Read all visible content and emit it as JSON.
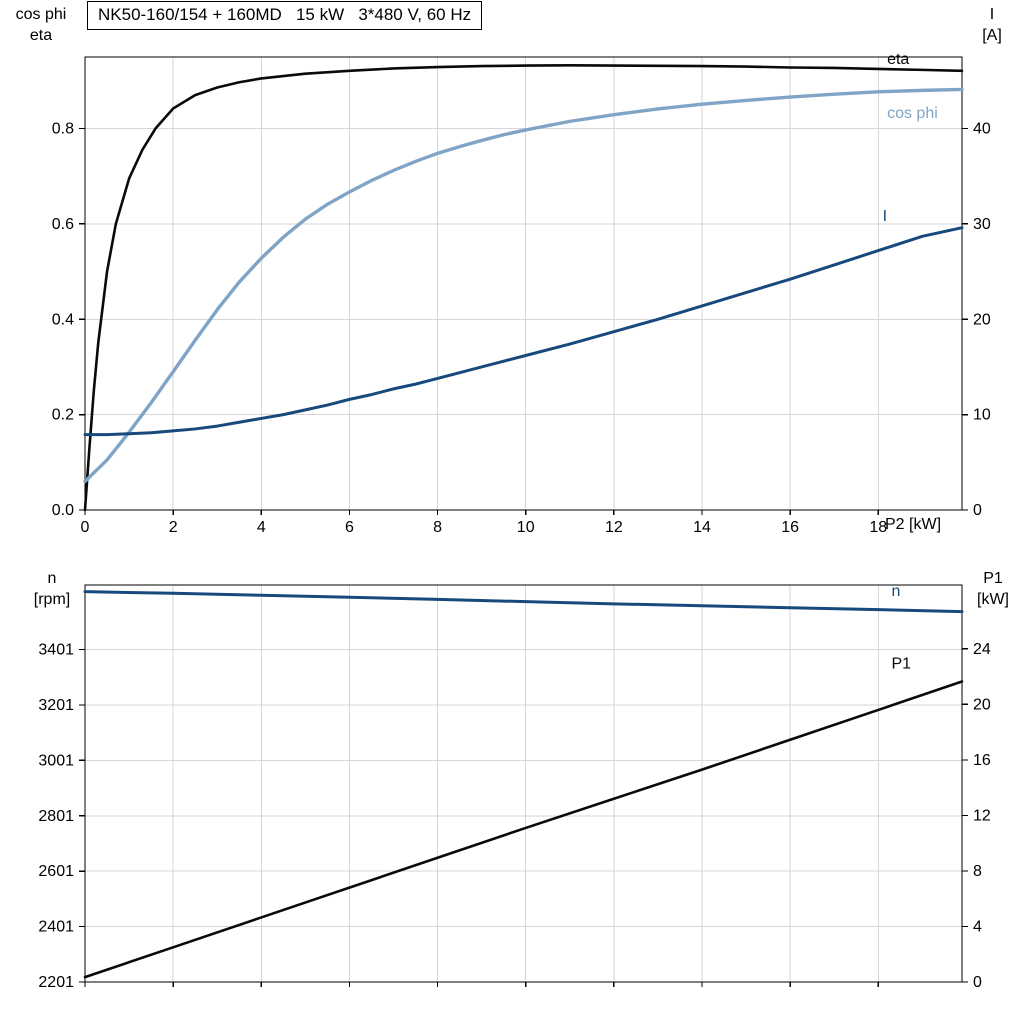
{
  "title_box": "NK50-160/154 + 160MD   15 kW   3*480 V, 60 Hz",
  "labels": {
    "top_left_1": "cos phi",
    "top_left_2": "eta",
    "top_right_1": "I",
    "top_right_2": "[A]",
    "x_axis_top": "P2 [kW]",
    "bottom_left_1": "n",
    "bottom_left_2": "[rpm]",
    "bottom_right_1": "P1",
    "bottom_right_2": "[kW]"
  },
  "colors": {
    "axis": "#000000",
    "grid": "#d6d6d6",
    "black_curve": "#0a0a0a",
    "light_blue": "#7fa4c6",
    "dark_blue": "#17497d",
    "background": "#ffffff"
  },
  "chart_data": [
    {
      "type": "line",
      "title": "NK50-160/154 + 160MD   15 kW   3*480 V, 60 Hz",
      "xlabel": "P2 [kW]",
      "ylabel_left": "cos phi / eta",
      "ylabel_right": "I [A]",
      "grid": true,
      "xlim": [
        0,
        19.9
      ],
      "xticks": [
        0,
        2,
        4,
        6,
        8,
        10,
        12,
        14,
        16,
        18
      ],
      "xtick_labels": [
        "0",
        "2",
        "4",
        "6",
        "8",
        "10",
        "12",
        "14",
        "16",
        "18"
      ],
      "ylim_left": [
        0,
        0.95
      ],
      "yticks_left": [
        0.0,
        0.2,
        0.4,
        0.6,
        0.8
      ],
      "ytick_left_labels": [
        "0.0",
        "0.2",
        "0.4",
        "0.6",
        "0.8"
      ],
      "ylim_right": [
        0,
        47.5
      ],
      "yticks_right": [
        0,
        10,
        20,
        30,
        40
      ],
      "ytick_right_labels": [
        "0",
        "10",
        "20",
        "30",
        "40"
      ],
      "series": [
        {
          "name": "eta",
          "axis": "left",
          "color": "#0a0a0a",
          "width": 2.6,
          "label_x": 18.2,
          "label_y": 0.935,
          "x": [
            0,
            0.1,
            0.2,
            0.3,
            0.5,
            0.7,
            1,
            1.3,
            1.6,
            2,
            2.5,
            3,
            3.5,
            4,
            5,
            6,
            7,
            8,
            9,
            10,
            11,
            12,
            13,
            14,
            15,
            16,
            17,
            18,
            19,
            19.9
          ],
          "y": [
            0,
            0.13,
            0.25,
            0.35,
            0.5,
            0.6,
            0.695,
            0.755,
            0.8,
            0.842,
            0.87,
            0.886,
            0.897,
            0.905,
            0.915,
            0.921,
            0.926,
            0.929,
            0.931,
            0.932,
            0.9325,
            0.932,
            0.9315,
            0.931,
            0.93,
            0.928,
            0.927,
            0.925,
            0.923,
            0.921
          ]
        },
        {
          "name": "cos phi",
          "axis": "left",
          "color": "#7fa4c6",
          "width": 3.4,
          "label_x": 18.2,
          "label_y": 0.822,
          "x": [
            0,
            0.5,
            1,
            1.5,
            2,
            2.5,
            3,
            3.5,
            4,
            4.5,
            5,
            5.5,
            6,
            6.5,
            7,
            7.5,
            8,
            8.5,
            9,
            9.5,
            10,
            11,
            12,
            13,
            14,
            15,
            16,
            17,
            18,
            19,
            19.9
          ],
          "y": [
            0.06,
            0.105,
            0.163,
            0.225,
            0.29,
            0.356,
            0.42,
            0.478,
            0.528,
            0.572,
            0.61,
            0.641,
            0.667,
            0.691,
            0.712,
            0.731,
            0.748,
            0.762,
            0.775,
            0.787,
            0.797,
            0.815,
            0.829,
            0.841,
            0.851,
            0.859,
            0.866,
            0.872,
            0.877,
            0.88,
            0.882
          ]
        },
        {
          "name": "I",
          "axis": "right",
          "color": "#17497d",
          "width": 3.0,
          "label_x": 18.1,
          "label_y": 30.3,
          "x": [
            0,
            0.5,
            1,
            1.5,
            2,
            2.5,
            3,
            3.5,
            4,
            4.5,
            5,
            5.5,
            6,
            6.5,
            7,
            7.5,
            8,
            9,
            10,
            11,
            12,
            13,
            14,
            15,
            16,
            17,
            18,
            19,
            19.9
          ],
          "y": [
            7.9,
            7.9,
            8.0,
            8.1,
            8.3,
            8.5,
            8.8,
            9.2,
            9.6,
            10.0,
            10.5,
            11.0,
            11.6,
            12.1,
            12.7,
            13.2,
            13.8,
            15.0,
            16.2,
            17.4,
            18.7,
            20.0,
            21.4,
            22.8,
            24.2,
            25.7,
            27.2,
            28.7,
            29.6
          ]
        }
      ]
    },
    {
      "type": "line",
      "title": "",
      "xlabel": "",
      "ylabel_left": "n [rpm]",
      "ylabel_right": "P1 [kW]",
      "grid": true,
      "xlim": [
        0,
        19.9
      ],
      "xticks": [
        0,
        2,
        4,
        6,
        8,
        10,
        12,
        14,
        16,
        18
      ],
      "xtick_labels": null,
      "ylim_left": [
        2201,
        3634
      ],
      "yticks_left": [
        2201,
        2401,
        2601,
        2801,
        3001,
        3201,
        3401
      ],
      "ytick_left_labels": [
        "2201",
        "2401",
        "2601",
        "2801",
        "3001",
        "3201",
        "3401"
      ],
      "ylim_right": [
        0,
        28.6
      ],
      "yticks_right": [
        0,
        4,
        8,
        12,
        16,
        20,
        24
      ],
      "ytick_right_labels": [
        "0",
        "4",
        "8",
        "12",
        "16",
        "20",
        "24"
      ],
      "series": [
        {
          "name": "n",
          "axis": "left",
          "color": "#17497d",
          "width": 3.0,
          "label_x": 18.3,
          "label_y": 3594,
          "x": [
            0,
            2,
            4,
            6,
            8,
            10,
            12,
            14,
            16,
            18,
            19.9
          ],
          "y": [
            3610,
            3604,
            3597,
            3590,
            3582,
            3574,
            3566,
            3559,
            3552,
            3545,
            3538
          ]
        },
        {
          "name": "P1",
          "axis": "right",
          "color": "#0a0a0a",
          "width": 2.6,
          "label_x": 18.3,
          "label_y": 22.6,
          "x": [
            0,
            2,
            4,
            6,
            8,
            10,
            12,
            14,
            16,
            18,
            19.9
          ],
          "y": [
            0.35,
            2.5,
            4.65,
            6.8,
            8.95,
            11.1,
            13.2,
            15.3,
            17.45,
            19.6,
            21.65
          ]
        }
      ]
    }
  ]
}
